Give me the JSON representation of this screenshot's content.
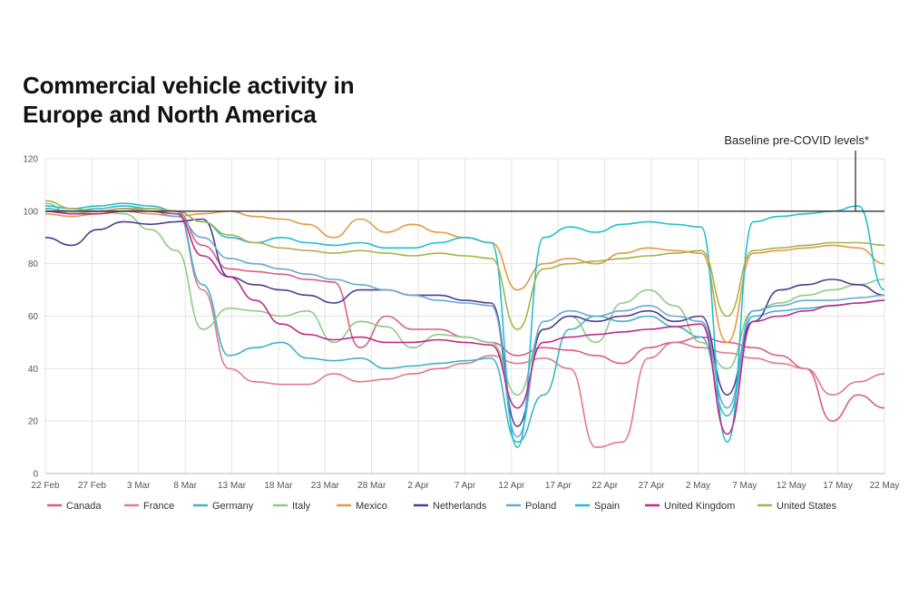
{
  "chart_data": {
    "type": "line",
    "title": "Commercial vehicle activity in\nEurope and North America",
    "xlabel": "",
    "ylabel": "",
    "x_ticks": [
      "22 Feb",
      "27 Feb",
      "3 Mar",
      "8 Mar",
      "13 Mar",
      "18 Mar",
      "23 Mar",
      "28 Mar",
      "2 Apr",
      "7 Apr",
      "12 Apr",
      "17 Apr",
      "22 Apr",
      "27 Apr",
      "2 May",
      "7 May",
      "12 May",
      "17 May",
      "22 May"
    ],
    "y_ticks": [
      0,
      20,
      40,
      60,
      80,
      100,
      120
    ],
    "ylim": [
      0,
      120
    ],
    "grid": true,
    "legend_position": "bottom",
    "baseline": {
      "value": 100,
      "label": "Baseline pre-COVID levels*"
    },
    "series": [
      {
        "name": "Canada",
        "color": "#d95f7f",
        "values": [
          100,
          99,
          100,
          101,
          101,
          100,
          87,
          78,
          77,
          76,
          74,
          73,
          48,
          60,
          55,
          55,
          52,
          50,
          45,
          48,
          47,
          45,
          42,
          48,
          50,
          52,
          50,
          48,
          45,
          40,
          20,
          30,
          25
        ]
      },
      {
        "name": "France",
        "color": "#e07b8a",
        "values": [
          101,
          100,
          100,
          100,
          101,
          100,
          70,
          40,
          35,
          34,
          34,
          38,
          35,
          36,
          38,
          40,
          42,
          45,
          42,
          44,
          40,
          10,
          12,
          44,
          50,
          48,
          46,
          44,
          42,
          40,
          30,
          35,
          38
        ]
      },
      {
        "name": "Germany",
        "color": "#3fb3c9",
        "values": [
          101,
          100,
          101,
          102,
          101,
          100,
          72,
          45,
          48,
          50,
          44,
          43,
          44,
          40,
          41,
          42,
          43,
          44,
          12,
          30,
          55,
          60,
          58,
          60,
          56,
          52,
          22,
          60,
          62,
          63,
          64,
          65,
          66
        ]
      },
      {
        "name": "Italy",
        "color": "#8fcb85",
        "values": [
          103,
          99,
          100,
          99,
          93,
          85,
          55,
          63,
          62,
          60,
          62,
          50,
          58,
          56,
          48,
          53,
          52,
          50,
          30,
          55,
          60,
          50,
          65,
          70,
          64,
          50,
          40,
          62,
          65,
          68,
          70,
          72,
          74
        ]
      },
      {
        "name": "Mexico",
        "color": "#e39a44",
        "values": [
          99,
          98,
          99,
          100,
          99,
          98,
          99,
          100,
          98,
          97,
          95,
          90,
          97,
          92,
          95,
          92,
          90,
          88,
          70,
          80,
          82,
          80,
          84,
          86,
          85,
          84,
          50,
          84,
          85,
          86,
          87,
          86,
          80
        ]
      },
      {
        "name": "Netherlands",
        "color": "#4b3f8f",
        "values": [
          90,
          87,
          93,
          96,
          95,
          96,
          97,
          75,
          72,
          70,
          68,
          65,
          70,
          70,
          68,
          68,
          66,
          65,
          18,
          55,
          60,
          58,
          60,
          62,
          58,
          60,
          30,
          58,
          70,
          72,
          74,
          72,
          68
        ]
      },
      {
        "name": "Poland",
        "color": "#6aa8d8",
        "values": [
          100,
          100,
          100,
          101,
          100,
          98,
          90,
          82,
          80,
          78,
          76,
          74,
          72,
          70,
          68,
          66,
          65,
          64,
          14,
          58,
          62,
          60,
          62,
          64,
          60,
          58,
          25,
          62,
          64,
          66,
          66,
          67,
          68
        ]
      },
      {
        "name": "Spain",
        "color": "#22bfd0",
        "values": [
          102,
          101,
          102,
          103,
          102,
          100,
          96,
          90,
          88,
          90,
          88,
          87,
          88,
          86,
          86,
          88,
          90,
          88,
          10,
          90,
          94,
          92,
          95,
          96,
          95,
          94,
          12,
          96,
          98,
          99,
          100,
          102,
          70
        ]
      },
      {
        "name": "United Kingdom",
        "color": "#c02a8a",
        "values": [
          100,
          99,
          99,
          100,
          100,
          99,
          83,
          75,
          66,
          57,
          53,
          51,
          52,
          50,
          50,
          51,
          50,
          49,
          25,
          50,
          52,
          53,
          54,
          55,
          56,
          57,
          15,
          58,
          60,
          62,
          64,
          65,
          66
        ]
      },
      {
        "name": "United States",
        "color": "#a5b44a",
        "values": [
          104,
          101,
          100,
          101,
          101,
          100,
          96,
          91,
          88,
          86,
          85,
          84,
          85,
          84,
          83,
          84,
          83,
          82,
          55,
          78,
          80,
          81,
          82,
          83,
          84,
          85,
          60,
          85,
          86,
          87,
          88,
          88,
          87
        ]
      }
    ]
  }
}
